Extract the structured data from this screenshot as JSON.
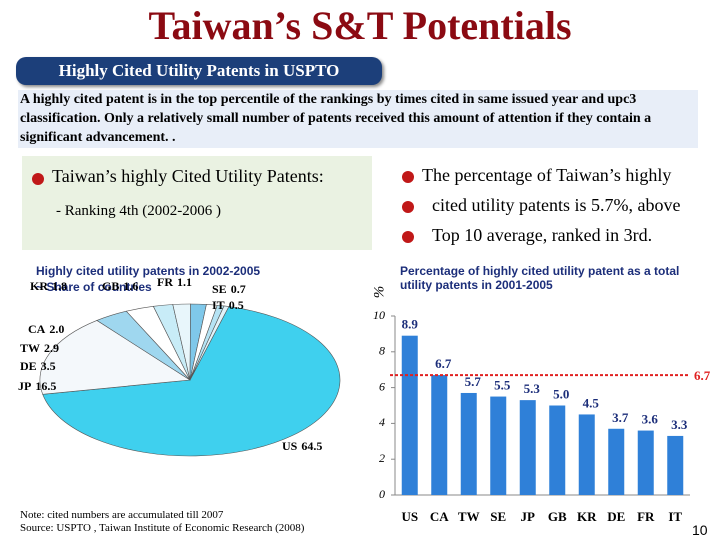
{
  "header": {
    "title": "Taiwan’s S&T Potentials",
    "tab": "Highly Cited Utility Patents in USPTO",
    "description": "A highly cited patent is in the top percentile of the rankings by times cited in same issued year and upc3 classification. Only a relatively small number of patents received this amount of attention if they contain a significant advancement. ."
  },
  "left_box": {
    "heading": "Taiwan’s highly Cited Utility Patents:",
    "detail": "- Ranking 4th (2002-2006 )"
  },
  "right_bullets": [
    "The percentage of Taiwan’s highly",
    "cited utility patents is 5.7%, above",
    "Top 10 average, ranked in 3rd."
  ],
  "chart_data": [
    {
      "type": "pie",
      "title": "Highly cited utility patents in 2002-2005",
      "subtitle": "~ Share of countries",
      "categories": [
        "US",
        "JP",
        "DE",
        "TW",
        "CA",
        "KR",
        "GB",
        "FR",
        "SE",
        "IT"
      ],
      "values": [
        64.5,
        16.5,
        3.5,
        2.9,
        2.0,
        1.8,
        1.6,
        1.1,
        0.7,
        0.5
      ],
      "value_labels": [
        "64.5",
        "16.5",
        "3.5",
        "2.9",
        "2.0",
        "1.8",
        "1.6",
        "1.1",
        "0.7",
        "0.5"
      ],
      "colors": [
        "#3fd0ee",
        "#f4f8fb",
        "#9fd7ef",
        "#ffffff",
        "#c8ecf7",
        "#e8f6fb",
        "#7fc8ea",
        "#ffffff",
        "#b5e3f4",
        "#e0f3fa"
      ]
    },
    {
      "type": "bar",
      "title": "Percentage of highly cited utility patent as a total utility patents in 2001-2005",
      "y_label": "%",
      "categories": [
        "US",
        "CA",
        "TW",
        "SE",
        "JP",
        "GB",
        "KR",
        "DE",
        "FR",
        "IT"
      ],
      "values": [
        8.9,
        6.7,
        5.7,
        5.5,
        5.3,
        5.0,
        4.5,
        3.7,
        3.6,
        3.3
      ],
      "value_labels": [
        "8.9",
        "6.7",
        "5.7",
        "5.5",
        "5.3",
        "5.0",
        "4.5",
        "3.7",
        "3.6",
        "3.3"
      ],
      "color": "#2f80d8",
      "ylim": [
        0,
        10
      ],
      "yticks": [
        0,
        2,
        4,
        6,
        8,
        10
      ],
      "reference_line": 6.7,
      "reference_color": "#e02020"
    }
  ],
  "notes": [
    "Note: cited numbers are accumulated till 2007",
    "Source: USPTO , Taiwan Institute of Economic Research (2008)"
  ],
  "page_number": "10"
}
